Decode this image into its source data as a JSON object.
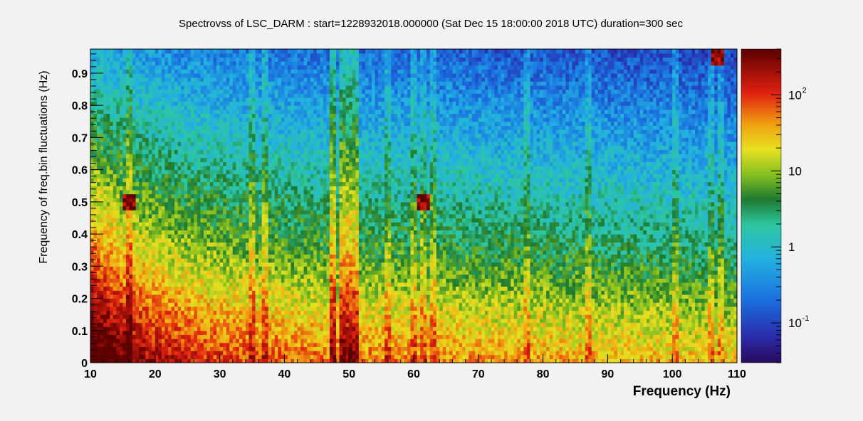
{
  "chart_data": {
    "type": "heatmap",
    "title": "Spectrovss of LSC_DARM : start=1228932018.000000 (Sat Dec 15 18:00:00 2018 UTC) duration=300 sec",
    "xlabel": "Frequency (Hz)",
    "ylabel": "Frequency of freq.bin fluctuations (Hz)",
    "xlim": [
      10,
      110
    ],
    "ylim": [
      0,
      0.975
    ],
    "x_ticks": [
      "10",
      "20",
      "30",
      "40",
      "50",
      "60",
      "70",
      "80",
      "90",
      "100",
      "110"
    ],
    "y_ticks": [
      "0",
      "0.1",
      "0.2",
      "0.3",
      "0.4",
      "0.5",
      "0.6",
      "0.7",
      "0.8",
      "0.9"
    ],
    "colorbar": {
      "scale": "log",
      "range": [
        0.03,
        400
      ],
      "tick_labels": [
        {
          "value": 100,
          "base": "10",
          "exp": "2"
        },
        {
          "value": 10,
          "base": "10",
          "exp": ""
        },
        {
          "value": 1,
          "base": "1",
          "exp": ""
        },
        {
          "value": 0.1,
          "base": "10",
          "exp": "-1"
        }
      ]
    },
    "features": {
      "line_frequencies_hz": [
        16,
        35,
        37,
        47.5,
        49,
        50,
        51,
        56,
        60,
        61.5,
        63,
        77.5,
        87,
        100.5,
        106,
        107.5
      ],
      "hot_spots": [
        {
          "x": 16,
          "y": 0.5
        },
        {
          "x": 61.5,
          "y": 0.5
        },
        {
          "x": 107,
          "y": 0.95
        }
      ]
    },
    "grid": false,
    "legend": "colorbar-right"
  }
}
